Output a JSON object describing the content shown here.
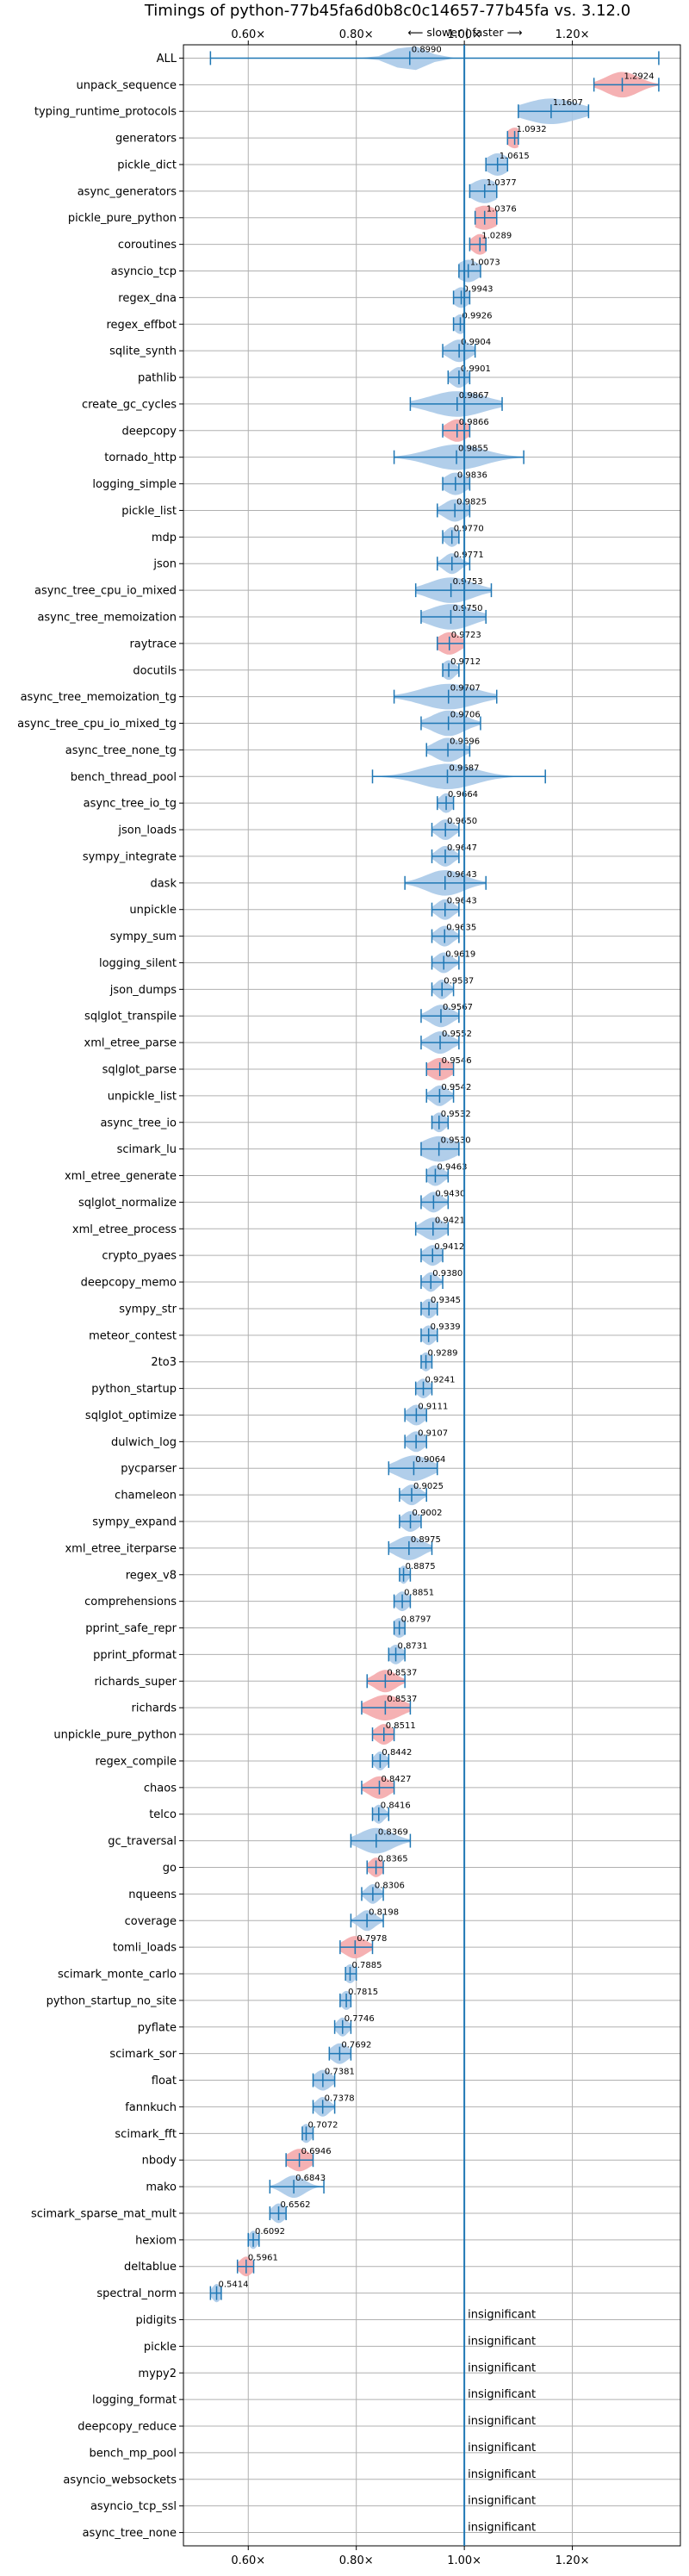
{
  "chart_data": {
    "type": "violin",
    "title": "Timings of python-77b45fa6d0b8c0c14657-77b45fa vs. 3.12.0",
    "subtitle": "⟵ slower | faster ⟶",
    "xlabel": "",
    "ylabel": "",
    "x_ticks": [
      0.6,
      0.8,
      1.0,
      1.2
    ],
    "x_tick_labels": [
      "0.60×",
      "0.80×",
      "1.00×",
      "1.20×"
    ],
    "xlim": [
      0.48,
      1.4
    ],
    "grid": true,
    "colors": {
      "normal": "#a9c9e8",
      "highlight": "#f4a9ab",
      "line": "#1f77b4"
    },
    "benchmarks": [
      {
        "name": "ALL",
        "value": 0.899,
        "min": 0.53,
        "max": 1.36,
        "spread": 0.03,
        "hl": false
      },
      {
        "name": "unpack_sequence",
        "value": 1.2924,
        "min": 1.24,
        "max": 1.36,
        "spread": 0.03,
        "hl": true
      },
      {
        "name": "typing_runtime_protocols",
        "value": 1.1607,
        "min": 1.1,
        "max": 1.23,
        "spread": 0.05,
        "hl": false
      },
      {
        "name": "generators",
        "value": 1.0932,
        "min": 1.08,
        "max": 1.1,
        "spread": 0.015,
        "hl": true
      },
      {
        "name": "pickle_dict",
        "value": 1.0615,
        "min": 1.04,
        "max": 1.08,
        "spread": 0.02,
        "hl": false
      },
      {
        "name": "async_generators",
        "value": 1.0377,
        "min": 1.01,
        "max": 1.06,
        "spread": 0.025,
        "hl": false
      },
      {
        "name": "pickle_pure_python",
        "value": 1.0376,
        "min": 1.02,
        "max": 1.06,
        "spread": 0.025,
        "hl": true
      },
      {
        "name": "coroutines",
        "value": 1.0289,
        "min": 1.01,
        "max": 1.04,
        "spread": 0.015,
        "hl": true
      },
      {
        "name": "asyncio_tcp",
        "value": 1.0073,
        "min": 0.99,
        "max": 1.03,
        "spread": 0.02,
        "hl": false
      },
      {
        "name": "regex_dna",
        "value": 0.9943,
        "min": 0.98,
        "max": 1.01,
        "spread": 0.015,
        "hl": false
      },
      {
        "name": "regex_effbot",
        "value": 0.9926,
        "min": 0.98,
        "max": 1.0,
        "spread": 0.012,
        "hl": false
      },
      {
        "name": "sqlite_synth",
        "value": 0.9904,
        "min": 0.96,
        "max": 1.02,
        "spread": 0.02,
        "hl": false
      },
      {
        "name": "pathlib",
        "value": 0.9901,
        "min": 0.97,
        "max": 1.01,
        "spread": 0.015,
        "hl": false
      },
      {
        "name": "create_gc_cycles",
        "value": 0.9867,
        "min": 0.9,
        "max": 1.07,
        "spread": 0.05,
        "hl": false
      },
      {
        "name": "deepcopy",
        "value": 0.9866,
        "min": 0.96,
        "max": 1.01,
        "spread": 0.02,
        "hl": true
      },
      {
        "name": "tornado_http",
        "value": 0.9855,
        "min": 0.87,
        "max": 1.11,
        "spread": 0.05,
        "hl": false
      },
      {
        "name": "logging_simple",
        "value": 0.9836,
        "min": 0.96,
        "max": 1.01,
        "spread": 0.02,
        "hl": false
      },
      {
        "name": "pickle_list",
        "value": 0.9825,
        "min": 0.95,
        "max": 1.01,
        "spread": 0.02,
        "hl": false
      },
      {
        "name": "mdp",
        "value": 0.977,
        "min": 0.96,
        "max": 0.99,
        "spread": 0.012,
        "hl": false
      },
      {
        "name": "json",
        "value": 0.9771,
        "min": 0.95,
        "max": 1.01,
        "spread": 0.015,
        "hl": false
      },
      {
        "name": "async_tree_cpu_io_mixed",
        "value": 0.9753,
        "min": 0.91,
        "max": 1.05,
        "spread": 0.04,
        "hl": false
      },
      {
        "name": "async_tree_memoization",
        "value": 0.975,
        "min": 0.92,
        "max": 1.04,
        "spread": 0.04,
        "hl": false
      },
      {
        "name": "raytrace",
        "value": 0.9723,
        "min": 0.95,
        "max": 1.0,
        "spread": 0.02,
        "hl": true
      },
      {
        "name": "docutils",
        "value": 0.9712,
        "min": 0.96,
        "max": 0.99,
        "spread": 0.012,
        "hl": false
      },
      {
        "name": "async_tree_memoization_tg",
        "value": 0.9707,
        "min": 0.87,
        "max": 1.06,
        "spread": 0.05,
        "hl": false
      },
      {
        "name": "async_tree_cpu_io_mixed_tg",
        "value": 0.9706,
        "min": 0.92,
        "max": 1.03,
        "spread": 0.03,
        "hl": false
      },
      {
        "name": "async_tree_none_tg",
        "value": 0.9696,
        "min": 0.93,
        "max": 1.01,
        "spread": 0.025,
        "hl": false
      },
      {
        "name": "bench_thread_pool",
        "value": 0.9687,
        "min": 0.83,
        "max": 1.15,
        "spread": 0.05,
        "hl": false
      },
      {
        "name": "async_tree_io_tg",
        "value": 0.9664,
        "min": 0.95,
        "max": 0.98,
        "spread": 0.012,
        "hl": false
      },
      {
        "name": "json_loads",
        "value": 0.965,
        "min": 0.94,
        "max": 0.99,
        "spread": 0.015,
        "hl": false
      },
      {
        "name": "sympy_integrate",
        "value": 0.9647,
        "min": 0.94,
        "max": 0.99,
        "spread": 0.015,
        "hl": false
      },
      {
        "name": "dask",
        "value": 0.9643,
        "min": 0.89,
        "max": 1.04,
        "spread": 0.035,
        "hl": false
      },
      {
        "name": "unpickle",
        "value": 0.9643,
        "min": 0.94,
        "max": 0.99,
        "spread": 0.015,
        "hl": false
      },
      {
        "name": "sympy_sum",
        "value": 0.9635,
        "min": 0.94,
        "max": 0.99,
        "spread": 0.015,
        "hl": false
      },
      {
        "name": "logging_silent",
        "value": 0.9619,
        "min": 0.94,
        "max": 0.99,
        "spread": 0.015,
        "hl": false
      },
      {
        "name": "json_dumps",
        "value": 0.9587,
        "min": 0.94,
        "max": 0.98,
        "spread": 0.012,
        "hl": false
      },
      {
        "name": "sqlglot_transpile",
        "value": 0.9567,
        "min": 0.92,
        "max": 0.99,
        "spread": 0.02,
        "hl": false
      },
      {
        "name": "xml_etree_parse",
        "value": 0.9552,
        "min": 0.92,
        "max": 0.99,
        "spread": 0.02,
        "hl": false
      },
      {
        "name": "sqlglot_parse",
        "value": 0.9546,
        "min": 0.93,
        "max": 0.98,
        "spread": 0.02,
        "hl": true
      },
      {
        "name": "unpickle_list",
        "value": 0.9542,
        "min": 0.93,
        "max": 0.98,
        "spread": 0.015,
        "hl": false
      },
      {
        "name": "async_tree_io",
        "value": 0.9532,
        "min": 0.94,
        "max": 0.97,
        "spread": 0.012,
        "hl": false
      },
      {
        "name": "scimark_lu",
        "value": 0.953,
        "min": 0.92,
        "max": 0.99,
        "spread": 0.03,
        "hl": false
      },
      {
        "name": "xml_etree_generate",
        "value": 0.9463,
        "min": 0.93,
        "max": 0.97,
        "spread": 0.015,
        "hl": false
      },
      {
        "name": "sqlglot_normalize",
        "value": 0.943,
        "min": 0.92,
        "max": 0.97,
        "spread": 0.015,
        "hl": false
      },
      {
        "name": "xml_etree_process",
        "value": 0.9421,
        "min": 0.91,
        "max": 0.97,
        "spread": 0.02,
        "hl": false
      },
      {
        "name": "crypto_pyaes",
        "value": 0.9412,
        "min": 0.92,
        "max": 0.96,
        "spread": 0.015,
        "hl": false
      },
      {
        "name": "deepcopy_memo",
        "value": 0.938,
        "min": 0.92,
        "max": 0.96,
        "spread": 0.012,
        "hl": false
      },
      {
        "name": "sympy_str",
        "value": 0.9345,
        "min": 0.92,
        "max": 0.95,
        "spread": 0.012,
        "hl": false
      },
      {
        "name": "meteor_contest",
        "value": 0.9339,
        "min": 0.92,
        "max": 0.95,
        "spread": 0.012,
        "hl": false
      },
      {
        "name": "2to3",
        "value": 0.9289,
        "min": 0.92,
        "max": 0.94,
        "spread": 0.01,
        "hl": false
      },
      {
        "name": "python_startup",
        "value": 0.9241,
        "min": 0.91,
        "max": 0.94,
        "spread": 0.012,
        "hl": false
      },
      {
        "name": "sqlglot_optimize",
        "value": 0.9111,
        "min": 0.89,
        "max": 0.93,
        "spread": 0.015,
        "hl": false
      },
      {
        "name": "dulwich_log",
        "value": 0.9107,
        "min": 0.89,
        "max": 0.93,
        "spread": 0.015,
        "hl": false
      },
      {
        "name": "pycparser",
        "value": 0.9064,
        "min": 0.86,
        "max": 0.95,
        "spread": 0.03,
        "hl": false
      },
      {
        "name": "chameleon",
        "value": 0.9025,
        "min": 0.88,
        "max": 0.93,
        "spread": 0.015,
        "hl": false
      },
      {
        "name": "sympy_expand",
        "value": 0.9002,
        "min": 0.88,
        "max": 0.92,
        "spread": 0.015,
        "hl": false
      },
      {
        "name": "xml_etree_iterparse",
        "value": 0.8975,
        "min": 0.86,
        "max": 0.94,
        "spread": 0.025,
        "hl": false
      },
      {
        "name": "regex_v8",
        "value": 0.8875,
        "min": 0.88,
        "max": 0.9,
        "spread": 0.008,
        "hl": false
      },
      {
        "name": "comprehensions",
        "value": 0.8851,
        "min": 0.87,
        "max": 0.9,
        "spread": 0.012,
        "hl": false
      },
      {
        "name": "pprint_safe_repr",
        "value": 0.8797,
        "min": 0.87,
        "max": 0.89,
        "spread": 0.012,
        "hl": false
      },
      {
        "name": "pprint_pformat",
        "value": 0.8731,
        "min": 0.86,
        "max": 0.89,
        "spread": 0.012,
        "hl": false
      },
      {
        "name": "richards_super",
        "value": 0.8537,
        "min": 0.82,
        "max": 0.89,
        "spread": 0.02,
        "hl": true
      },
      {
        "name": "richards",
        "value": 0.8537,
        "min": 0.81,
        "max": 0.9,
        "spread": 0.03,
        "hl": true
      },
      {
        "name": "unpickle_pure_python",
        "value": 0.8511,
        "min": 0.83,
        "max": 0.87,
        "spread": 0.015,
        "hl": true
      },
      {
        "name": "regex_compile",
        "value": 0.8442,
        "min": 0.83,
        "max": 0.86,
        "spread": 0.01,
        "hl": false
      },
      {
        "name": "chaos",
        "value": 0.8427,
        "min": 0.81,
        "max": 0.87,
        "spread": 0.02,
        "hl": true
      },
      {
        "name": "telco",
        "value": 0.8416,
        "min": 0.83,
        "max": 0.86,
        "spread": 0.01,
        "hl": false
      },
      {
        "name": "gc_traversal",
        "value": 0.8369,
        "min": 0.79,
        "max": 0.9,
        "spread": 0.03,
        "hl": false
      },
      {
        "name": "go",
        "value": 0.8365,
        "min": 0.82,
        "max": 0.85,
        "spread": 0.012,
        "hl": true
      },
      {
        "name": "nqueens",
        "value": 0.8306,
        "min": 0.81,
        "max": 0.85,
        "spread": 0.012,
        "hl": false
      },
      {
        "name": "coverage",
        "value": 0.8198,
        "min": 0.79,
        "max": 0.85,
        "spread": 0.015,
        "hl": false
      },
      {
        "name": "tomli_loads",
        "value": 0.7978,
        "min": 0.77,
        "max": 0.83,
        "spread": 0.02,
        "hl": true
      },
      {
        "name": "scimark_monte_carlo",
        "value": 0.7885,
        "min": 0.78,
        "max": 0.8,
        "spread": 0.01,
        "hl": false
      },
      {
        "name": "python_startup_no_site",
        "value": 0.7815,
        "min": 0.77,
        "max": 0.79,
        "spread": 0.01,
        "hl": false
      },
      {
        "name": "pyflate",
        "value": 0.7746,
        "min": 0.76,
        "max": 0.79,
        "spread": 0.01,
        "hl": false
      },
      {
        "name": "scimark_sor",
        "value": 0.7692,
        "min": 0.75,
        "max": 0.79,
        "spread": 0.015,
        "hl": false
      },
      {
        "name": "float",
        "value": 0.7381,
        "min": 0.72,
        "max": 0.76,
        "spread": 0.015,
        "hl": false
      },
      {
        "name": "fannkuch",
        "value": 0.7378,
        "min": 0.72,
        "max": 0.76,
        "spread": 0.012,
        "hl": false
      },
      {
        "name": "scimark_fft",
        "value": 0.7072,
        "min": 0.7,
        "max": 0.72,
        "spread": 0.01,
        "hl": false
      },
      {
        "name": "nbody",
        "value": 0.6946,
        "min": 0.67,
        "max": 0.72,
        "spread": 0.02,
        "hl": true
      },
      {
        "name": "mako",
        "value": 0.6843,
        "min": 0.64,
        "max": 0.74,
        "spread": 0.02,
        "hl": false
      },
      {
        "name": "scimark_sparse_mat_mult",
        "value": 0.6562,
        "min": 0.64,
        "max": 0.67,
        "spread": 0.012,
        "hl": false
      },
      {
        "name": "hexiom",
        "value": 0.6092,
        "min": 0.6,
        "max": 0.62,
        "spread": 0.008,
        "hl": false
      },
      {
        "name": "deltablue",
        "value": 0.5961,
        "min": 0.58,
        "max": 0.61,
        "spread": 0.012,
        "hl": true
      },
      {
        "name": "spectral_norm",
        "value": 0.5414,
        "min": 0.53,
        "max": 0.55,
        "spread": 0.008,
        "hl": false
      },
      {
        "name": "pidigits",
        "status": "insignificant"
      },
      {
        "name": "pickle",
        "status": "insignificant"
      },
      {
        "name": "mypy2",
        "status": "insignificant"
      },
      {
        "name": "logging_format",
        "status": "insignificant"
      },
      {
        "name": "deepcopy_reduce",
        "status": "insignificant"
      },
      {
        "name": "bench_mp_pool",
        "status": "insignificant"
      },
      {
        "name": "asyncio_websockets",
        "status": "insignificant"
      },
      {
        "name": "asyncio_tcp_ssl",
        "status": "insignificant"
      },
      {
        "name": "async_tree_none",
        "status": "insignificant"
      }
    ]
  }
}
